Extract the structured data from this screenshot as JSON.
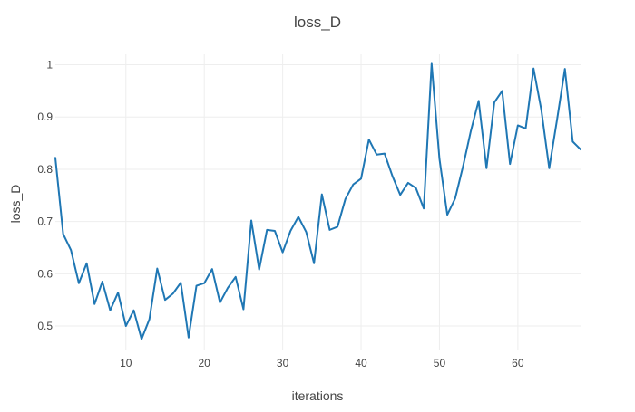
{
  "chart_data": {
    "type": "line",
    "title": "loss_D",
    "xlabel": "iterations",
    "ylabel": "loss_D",
    "xlim": [
      1,
      68
    ],
    "ylim": [
      0.455,
      1.02
    ],
    "grid": true,
    "xticks": [
      10,
      20,
      30,
      40,
      50,
      60
    ],
    "yticks": [
      0.5,
      0.6,
      0.7,
      0.8,
      0.9,
      1
    ],
    "xtick_labels": [
      "10",
      "20",
      "30",
      "40",
      "50",
      "60"
    ],
    "ytick_labels": [
      "0.5",
      "0.6",
      "0.7",
      "0.8",
      "0.9",
      "1"
    ],
    "series": [
      {
        "color": "#1f77b4",
        "x": [
          1,
          2,
          3,
          4,
          5,
          6,
          7,
          8,
          9,
          10,
          11,
          12,
          13,
          14,
          15,
          16,
          17,
          18,
          19,
          20,
          21,
          22,
          23,
          24,
          25,
          26,
          27,
          28,
          29,
          30,
          31,
          32,
          33,
          34,
          35,
          36,
          37,
          38,
          39,
          40,
          41,
          42,
          43,
          44,
          45,
          46,
          47,
          48,
          49,
          50,
          51,
          52,
          53,
          54,
          55,
          56,
          57,
          58,
          59,
          60,
          61,
          62,
          63,
          64,
          65,
          66,
          67,
          68
        ],
        "y": [
          0.822,
          0.676,
          0.645,
          0.582,
          0.62,
          0.542,
          0.585,
          0.53,
          0.564,
          0.5,
          0.53,
          0.475,
          0.513,
          0.61,
          0.55,
          0.562,
          0.583,
          0.478,
          0.577,
          0.582,
          0.609,
          0.545,
          0.573,
          0.594,
          0.532,
          0.702,
          0.608,
          0.684,
          0.682,
          0.641,
          0.682,
          0.709,
          0.68,
          0.62,
          0.752,
          0.684,
          0.69,
          0.743,
          0.771,
          0.782,
          0.857,
          0.828,
          0.83,
          0.787,
          0.751,
          0.774,
          0.764,
          0.725,
          1.002,
          0.82,
          0.713,
          0.744,
          0.805,
          0.873,
          0.931,
          0.802,
          0.928,
          0.95,
          0.81,
          0.884,
          0.878,
          0.993,
          0.913,
          0.802,
          0.895,
          0.992,
          0.853,
          0.838
        ]
      }
    ]
  }
}
